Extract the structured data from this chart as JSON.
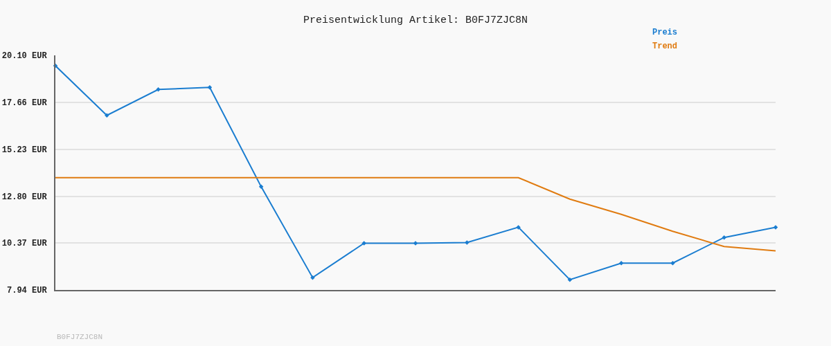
{
  "chart_data": {
    "type": "line",
    "title": "Preisentwicklung Artikel: B0FJ7ZJC8N",
    "categories": [
      null,
      null,
      null,
      null,
      null,
      null,
      null,
      null,
      null,
      null,
      null,
      null,
      null,
      null,
      null
    ],
    "series": [
      {
        "name": "Preis",
        "color": "#1a7dd0",
        "marker": "diamond",
        "values": [
          19.56,
          16.99,
          18.33,
          18.44,
          13.29,
          8.58,
          10.36,
          10.36,
          10.4,
          11.19,
          8.47,
          9.33,
          9.33,
          10.66,
          11.19
        ]
      },
      {
        "name": "Trend",
        "color": "#e07b10",
        "marker": "none",
        "values": [
          13.76,
          13.76,
          13.76,
          13.76,
          13.76,
          13.76,
          13.76,
          13.76,
          13.76,
          13.76,
          12.65,
          11.86,
          10.98,
          10.19,
          9.97
        ]
      }
    ],
    "ylim": [
      7.94,
      20.1
    ],
    "yticks": [
      {
        "value": 7.94,
        "label": "7.94 EUR"
      },
      {
        "value": 10.37,
        "label": "10.37 EUR"
      },
      {
        "value": 12.8,
        "label": "12.80 EUR"
      },
      {
        "value": 15.23,
        "label": "15.23 EUR"
      },
      {
        "value": 17.66,
        "label": "17.66 EUR"
      },
      {
        "value": 20.1,
        "label": "20.10 EUR"
      }
    ],
    "grid": "y",
    "legend": "top right",
    "annotations": [
      "B0FJ7ZJC8N"
    ]
  }
}
